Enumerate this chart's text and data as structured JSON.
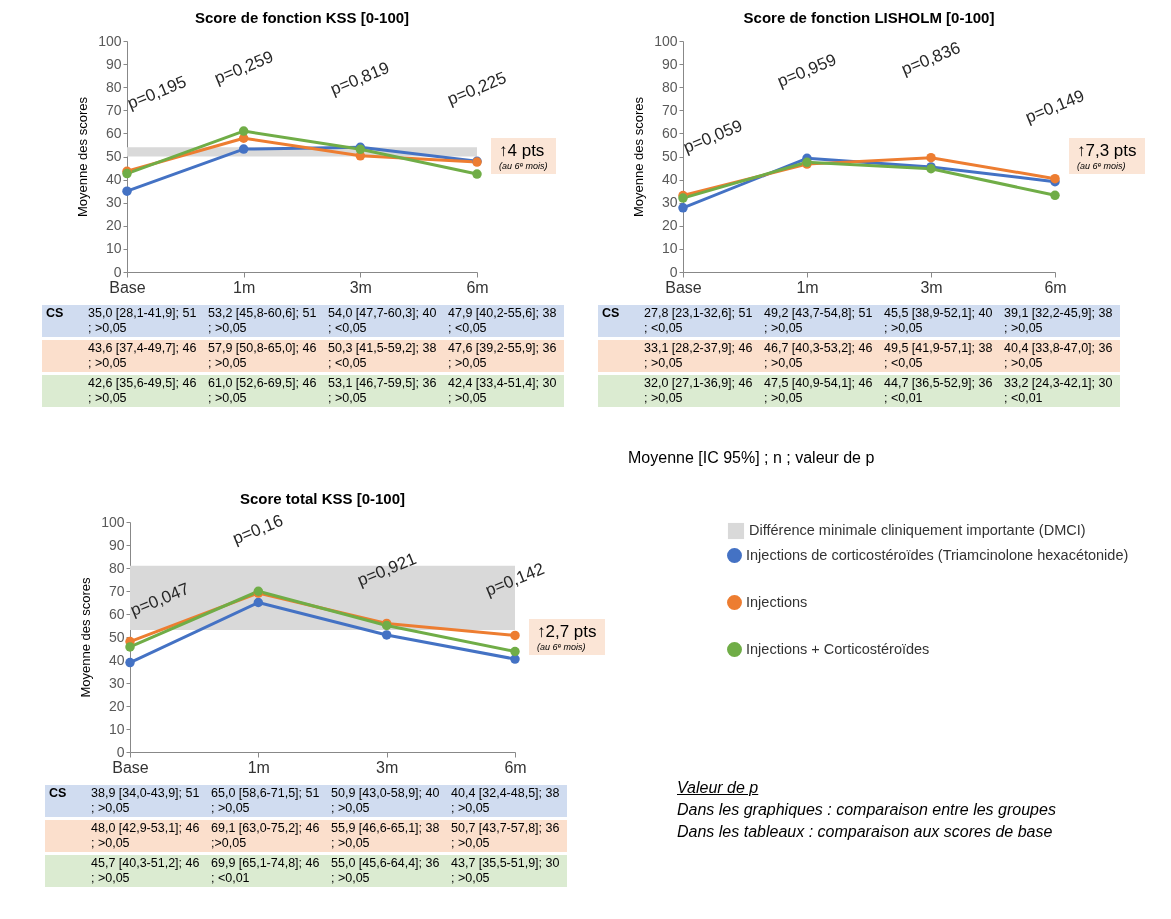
{
  "chart_data": [
    {
      "type": "line",
      "title": "Score de fonction KSS [0-100]",
      "ylabel": "Moyenne des scores",
      "categories": [
        "Base",
        "1m",
        "3m",
        "6m"
      ],
      "ylim": [
        0,
        100
      ],
      "yticks": [
        0,
        10,
        20,
        30,
        40,
        50,
        60,
        70,
        80,
        90,
        100
      ],
      "grid": false,
      "marker": "circle",
      "series": [
        {
          "color": "#4472c4",
          "values": [
            35.0,
            53.2,
            54.0,
            47.9
          ],
          "value_labels": [
            "35,0 [28,1-41,9]; 51 ; >0,05",
            "53,2 [45,8-60,6]; 51 ; >0,05",
            "54,0 [47,7-60,3]; 40 ; <0,05",
            "47,9 [40,2-55,6]; 38 ; <0,05"
          ]
        },
        {
          "color": "#ed7d31",
          "values": [
            43.6,
            57.9,
            50.3,
            47.6
          ],
          "value_labels": [
            "43,6 [37,4-49,7]; 46 ; >0,05",
            "57,9 [50,8-65,0]; 46 ; >0,05",
            "50,3 [41,5-59,2]; 38 ; <0,05",
            "47,6 [39,2-55,9]; 36 ; >0,05"
          ]
        },
        {
          "color": "#70ad47",
          "values": [
            42.6,
            61.0,
            53.1,
            42.4
          ],
          "value_labels": [
            "42,6 [35,6-49,5]; 46 ; >0,05",
            "61,0 [52,6-69,5]; 46 ; >0,05",
            "53,1 [46,7-59,5]; 36 ; >0,05",
            "42,4 [33,4-51,4]; 30 ; >0,05"
          ]
        }
      ],
      "bands": [
        {
          "axis": "y",
          "from": 50,
          "to": 54,
          "color": "#d9d9d9"
        }
      ],
      "annotations": [
        "p=0,195",
        "p=0,259",
        "p=0,819",
        "p=0,225",
        "↑4 pts",
        "(au 6ᵉ mois)",
        "CS"
      ]
    },
    {
      "type": "line",
      "title": "Score de fonction LISHOLM [0-100]",
      "ylabel": "Moyenne des scores",
      "categories": [
        "Base",
        "1m",
        "3m",
        "6m"
      ],
      "ylim": [
        0,
        100
      ],
      "yticks": [
        0,
        10,
        20,
        30,
        40,
        50,
        60,
        70,
        80,
        90,
        100
      ],
      "grid": false,
      "marker": "circle",
      "series": [
        {
          "color": "#4472c4",
          "values": [
            27.8,
            49.2,
            45.5,
            39.1
          ],
          "value_labels": [
            "27,8 [23,1-32,6]; 51 ; <0,05",
            "49,2 [43,7-54,8]; 51 ; >0,05",
            "45,5 [38,9-52,1]; 40 ; >0,05",
            "39,1 [32,2-45,9]; 38 ; >0,05"
          ]
        },
        {
          "color": "#ed7d31",
          "values": [
            33.1,
            46.7,
            49.5,
            40.4
          ],
          "value_labels": [
            "33,1 [28,2-37,9]; 46 ; >0,05",
            "46,7 [40,3-53,2]; 46 ; >0,05",
            "49,5 [41,9-57,1]; 38 ; <0,05",
            "40,4 [33,8-47,0]; 36 ; >0,05"
          ]
        },
        {
          "color": "#70ad47",
          "values": [
            32.0,
            47.5,
            44.7,
            33.2
          ],
          "value_labels": [
            "32,0 [27,1-36,9]; 46 ; >0,05",
            "47,5 [40,9-54,1]; 46 ; >0,05",
            "44,7 [36,5-52,9]; 36 ; <0,01",
            "33,2 [24,3-42,1]; 30 ; <0,01"
          ]
        }
      ],
      "annotations": [
        "p=0,059",
        "p=0,959",
        "p=0,836",
        "p=0,149",
        "↑7,3 pts",
        "(au 6ᵉ mois)",
        "CS",
        "Moyenne [IC 95%] ; n ; valeur de p"
      ]
    },
    {
      "type": "line",
      "title": "Score total KSS [0-100]",
      "ylabel": "Moyenne des scores",
      "categories": [
        "Base",
        "1m",
        "3m",
        "6m"
      ],
      "ylim": [
        0,
        100
      ],
      "yticks": [
        0,
        10,
        20,
        30,
        40,
        50,
        60,
        70,
        80,
        90,
        100
      ],
      "grid": false,
      "marker": "circle",
      "legend": "right",
      "series": [
        {
          "name": "Injections de corticostéroïdes (Triamcinolone hexacétonide)",
          "color": "#4472c4",
          "values": [
            38.9,
            65.0,
            50.9,
            40.4
          ],
          "value_labels": [
            "38,9 [34,0-43,9]; 51 ; >0,05",
            "65,0 [58,6-71,5]; 51 ; >0,05",
            "50,9 [43,0-58,9]; 40 ; >0,05",
            "40,4 [32,4-48,5]; 38 ; >0,05"
          ]
        },
        {
          "name": "Injections",
          "color": "#ed7d31",
          "values": [
            48.0,
            69.1,
            55.9,
            50.7
          ],
          "value_labels": [
            "48,0 [42,9-53,1]; 46 ; >0,05",
            "69,1 [63,0-75,2]; 46 ;>0,05",
            "55,9 [46,6-65,1]; 38 ; >0,05",
            "50,7 [43,7-57,8]; 36 ; >0,05"
          ]
        },
        {
          "name": "Injections + Corticostéroïdes",
          "color": "#70ad47",
          "values": [
            45.7,
            69.9,
            55.0,
            43.7
          ],
          "value_labels": [
            "45,7 [40,3-51,2]; 46 ; >0,05",
            "69,9 [65,1-74,8]; 46 ; <0,01",
            "55,0 [45,6-64,4]; 36 ; >0,05",
            "43,7 [35,5-51,9]; 30 ; >0,05"
          ]
        }
      ],
      "bands": [
        {
          "axis": "y",
          "from": 53,
          "to": 81,
          "color": "#d9d9d9",
          "label": "Différence minimale cliniquement importante (DMCI)"
        }
      ],
      "annotations": [
        "p=0,047",
        "p=0,16",
        "p=0,921",
        "p=0,142",
        "↑2,7 pts",
        "(au 6ᵉ mois)",
        "CS",
        "Valeur de p",
        "Dans les graphiques : comparaison entre les groupes",
        "Dans les tableaux : comparaison aux scores de base"
      ]
    }
  ]
}
